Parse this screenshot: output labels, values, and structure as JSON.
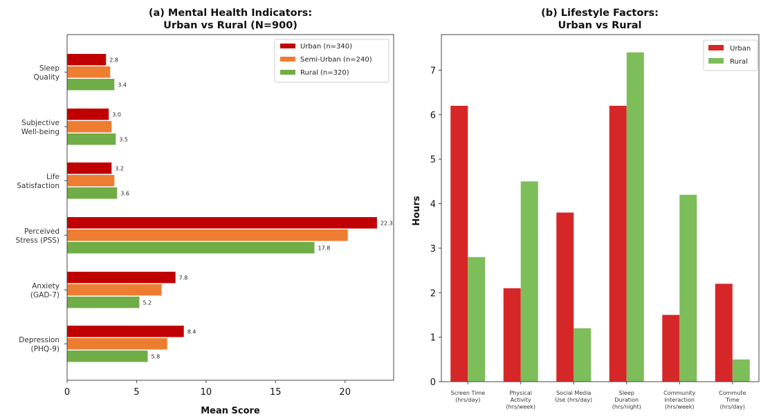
{
  "chart_data": [
    {
      "type": "bar",
      "orientation": "horizontal",
      "title": "(a) Mental Health Indicators:\nUrban vs Rural (N=900)",
      "xlabel": "Mean Score",
      "ylabel": "",
      "xlim": [
        0,
        23.5
      ],
      "xticks": [
        0,
        5,
        10,
        15,
        20
      ],
      "categories": [
        "Sleep\nQuality",
        "Subjective\nWell-being",
        "Life\nSatisfaction",
        "Perceived\nStress (PSS)",
        "Anxiety\n(GAD-7)",
        "Depression\n(PHQ-9)"
      ],
      "series": [
        {
          "name": "Urban (n=340)",
          "color": "#c00000",
          "values": [
            2.8,
            3.0,
            3.2,
            22.3,
            7.8,
            8.4
          ],
          "labels": [
            "2.8",
            "3.0",
            "3.2",
            "22.3",
            "7.8",
            "8.4"
          ]
        },
        {
          "name": "Semi-Urban (n=240)",
          "color": "#ed7d31",
          "values": [
            3.1,
            3.2,
            3.4,
            20.2,
            6.8,
            7.2
          ],
          "labels": null
        },
        {
          "name": "Rural (n=320)",
          "color": "#70ad47",
          "values": [
            3.4,
            3.5,
            3.6,
            17.8,
            5.2,
            5.8
          ],
          "labels": [
            "3.4",
            "3.5",
            "3.6",
            "17.8",
            "5.2",
            "5.8"
          ]
        }
      ],
      "legend": "top-right",
      "grid": false
    },
    {
      "type": "bar",
      "orientation": "vertical",
      "title": "(b) Lifestyle Factors:\nUrban vs Rural",
      "xlabel": "",
      "ylabel": "Hours",
      "ylim": [
        0,
        7.8
      ],
      "yticks": [
        0,
        1,
        2,
        3,
        4,
        5,
        6,
        7
      ],
      "categories": [
        "Screen Time\n(hrs/day)",
        "Physical\nActivity\n(hrs/week)",
        "Social Media\nUse (hrs/day)",
        "Sleep\nDuration\n(hrs/night)",
        "Community\nInteraction\n(hrs/week)",
        "Commute\nTime\n(hrs/day)"
      ],
      "series": [
        {
          "name": "Urban",
          "color": "#d62728",
          "values": [
            6.2,
            2.1,
            3.8,
            6.2,
            1.5,
            2.2
          ]
        },
        {
          "name": "Rural",
          "color": "#7dbd5a",
          "values": [
            2.8,
            4.5,
            1.2,
            7.4,
            4.2,
            0.5
          ]
        }
      ],
      "legend": "top-right",
      "grid": false
    }
  ]
}
